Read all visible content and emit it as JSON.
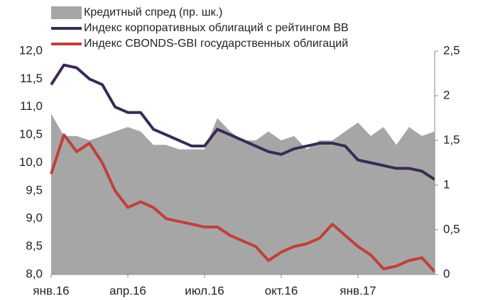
{
  "chart_data": {
    "type": "line",
    "categories": [
      "янв.16",
      null,
      null,
      null,
      null,
      null,
      "апр.16",
      null,
      null,
      null,
      null,
      null,
      "июл.16",
      null,
      null,
      null,
      null,
      null,
      "окт.16",
      null,
      null,
      null,
      null,
      null,
      "янв.17",
      null,
      null,
      null,
      null,
      null,
      null
    ],
    "series": [
      {
        "name": "Кредитный спред (пр. шк.)",
        "type": "area",
        "axis": "y2",
        "color": "#a6a6a6",
        "values": [
          1.8,
          1.55,
          1.55,
          1.5,
          1.55,
          1.6,
          1.65,
          1.6,
          1.45,
          1.45,
          1.4,
          1.4,
          1.4,
          1.75,
          1.6,
          1.5,
          1.5,
          1.6,
          1.5,
          1.55,
          1.4,
          1.5,
          1.5,
          1.6,
          1.7,
          1.55,
          1.65,
          1.45,
          1.65,
          1.55,
          1.6
        ]
      },
      {
        "name": "Индекс корпоративных облигаций с рейтингом BB",
        "type": "line",
        "color": "#3b2a55",
        "values": [
          11.4,
          11.75,
          11.7,
          11.5,
          11.4,
          11.0,
          10.9,
          10.9,
          10.6,
          10.5,
          10.4,
          10.3,
          10.3,
          10.6,
          10.5,
          10.4,
          10.3,
          10.2,
          10.15,
          10.25,
          10.3,
          10.35,
          10.35,
          10.3,
          10.05,
          10.0,
          9.95,
          9.9,
          9.9,
          9.85,
          9.7
        ]
      },
      {
        "name": "Индекс CBONDS-GBI государственных облигаций",
        "type": "line",
        "color": "#c0403a",
        "values": [
          9.8,
          10.5,
          10.2,
          10.35,
          10.0,
          9.5,
          9.2,
          9.3,
          9.2,
          9.0,
          8.95,
          8.9,
          8.85,
          8.85,
          8.7,
          8.6,
          8.5,
          8.25,
          8.4,
          8.5,
          8.55,
          8.65,
          8.9,
          8.7,
          8.5,
          8.35,
          8.1,
          8.15,
          8.25,
          8.3,
          8.05
        ]
      }
    ],
    "ylim": [
      8,
      12
    ],
    "yticks": [
      {
        "value": 8,
        "label": "8,0"
      },
      {
        "value": 8.5,
        "label": "8,5"
      },
      {
        "value": 9,
        "label": "9,0"
      },
      {
        "value": 9.5,
        "label": "9,5"
      },
      {
        "value": 10,
        "label": "10,0"
      },
      {
        "value": 10.5,
        "label": "10,5"
      },
      {
        "value": 11,
        "label": "11,0"
      },
      {
        "value": 11.5,
        "label": "11,5"
      },
      {
        "value": 12,
        "label": "12,0"
      }
    ],
    "y2lim": [
      0,
      2.5
    ],
    "y2ticks": [
      0,
      {
        "value": 0.5,
        "label": "0,5"
      },
      1,
      {
        "value": 1.5,
        "label": "1,5"
      },
      2,
      {
        "value": 2.5,
        "label": "2,5"
      }
    ],
    "grid": false
  }
}
